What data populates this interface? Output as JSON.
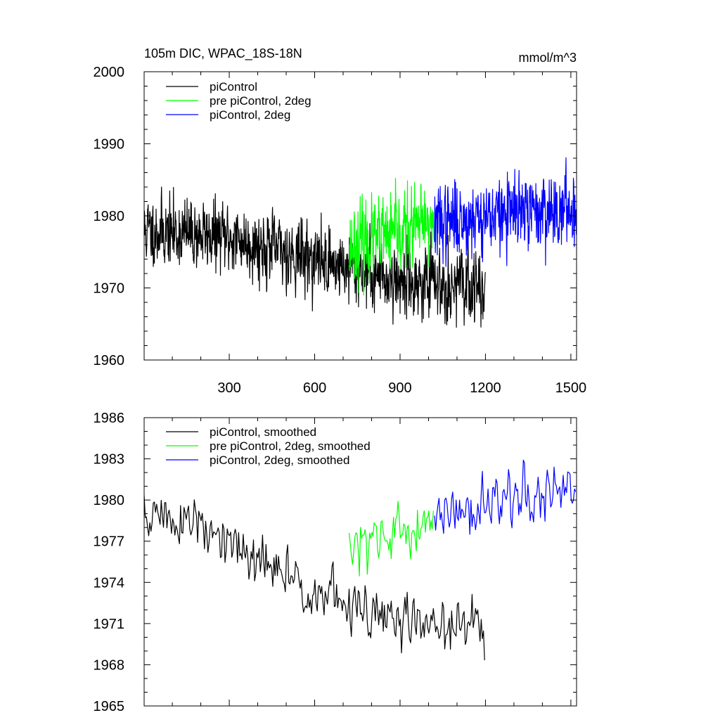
{
  "chart_data": [
    {
      "type": "line",
      "title": "105m DIC, WPAC_18S-18N",
      "units": "mmol/m^3",
      "xlim": [
        1,
        1520
      ],
      "ylim": [
        1960,
        2000
      ],
      "xticks": [
        300,
        600,
        900,
        1200,
        1500
      ],
      "xtick_labels": [
        "300",
        "600",
        "900",
        "1200",
        "1500"
      ],
      "yticks": [
        1960,
        1970,
        1980,
        1990,
        2000
      ],
      "ytick_labels": [
        "1960",
        "1970",
        "1980",
        "1990",
        "2000"
      ],
      "legend_position": "top-left",
      "series": [
        {
          "name": "piControl",
          "color": "#000000",
          "x_range": [
            1,
            1200
          ],
          "trend": [
            [
              1,
              1978
            ],
            [
              300,
              1977
            ],
            [
              600,
              1974
            ],
            [
              900,
              1971
            ],
            [
              1200,
              1970
            ]
          ],
          "noise_sd": 3.0,
          "seed": 11
        },
        {
          "name": "pre piControl, 2deg",
          "color": "#00ff00",
          "x_range": [
            721,
            1020
          ],
          "trend": [
            [
              721,
              1976
            ],
            [
              850,
              1977
            ],
            [
              1020,
              1979
            ]
          ],
          "noise_sd": 3.4,
          "seed": 23
        },
        {
          "name": "piControl, 2deg",
          "color": "#0000ff",
          "x_range": [
            1021,
            1520
          ],
          "trend": [
            [
              1021,
              1979
            ],
            [
              1200,
              1980
            ],
            [
              1520,
              1981
            ]
          ],
          "noise_sd": 3.2,
          "seed": 37
        }
      ]
    },
    {
      "type": "line",
      "xlim": [
        1,
        1520
      ],
      "ylim": [
        1965,
        1986
      ],
      "xticks": [
        300,
        600,
        900,
        1200,
        1500
      ],
      "yticks": [
        1965,
        1968,
        1971,
        1974,
        1977,
        1980,
        1983,
        1986
      ],
      "ytick_labels": [
        "1965",
        "1968",
        "1971",
        "1974",
        "1977",
        "1980",
        "1983",
        "1986"
      ],
      "legend_position": "top-left",
      "series": [
        {
          "name": "piControl, smoothed",
          "color": "#000000",
          "x_range": [
            1,
            1200
          ],
          "trend": [
            [
              1,
              1979
            ],
            [
              150,
              1978.5
            ],
            [
              300,
              1976.5
            ],
            [
              600,
              1973.5
            ],
            [
              800,
              1971.5
            ],
            [
              1000,
              1971
            ],
            [
              1200,
              1970.5
            ]
          ],
          "noise_sd": 1.3,
          "step": 4,
          "seed": 51
        },
        {
          "name": "pre piControl, 2deg, smoothed",
          "color": "#00ff00",
          "x_range": [
            721,
            1020
          ],
          "trend": [
            [
              721,
              1976
            ],
            [
              850,
              1977
            ],
            [
              1020,
              1979
            ]
          ],
          "noise_sd": 1.3,
          "step": 4,
          "seed": 63
        },
        {
          "name": "piControl, 2deg, smoothed",
          "color": "#0000ff",
          "x_range": [
            1021,
            1520
          ],
          "trend": [
            [
              1021,
              1979
            ],
            [
              1200,
              1979.5
            ],
            [
              1520,
              1981
            ]
          ],
          "noise_sd": 1.4,
          "step": 4,
          "seed": 77
        }
      ]
    }
  ]
}
